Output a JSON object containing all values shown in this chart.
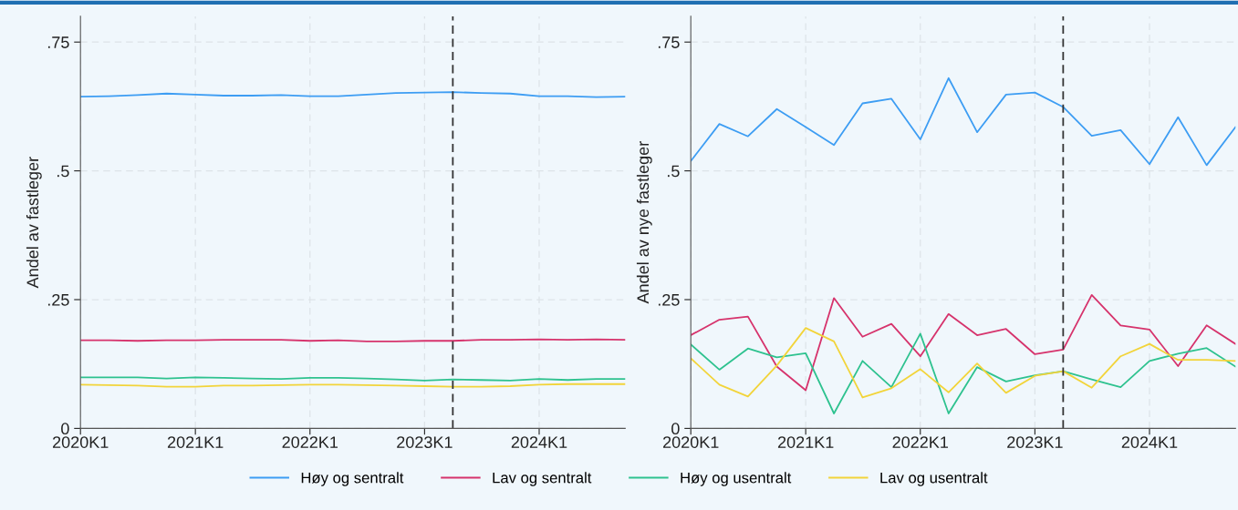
{
  "chart_data": [
    {
      "type": "line",
      "ylabel": "Andel av fastleger",
      "x": [
        "2020-01",
        "2020-04",
        "2020-07",
        "2020-10",
        "2021-01",
        "2021-04",
        "2021-07",
        "2021-10",
        "2022-01",
        "2022-04",
        "2022-07",
        "2022-10",
        "2023-01",
        "2023-04",
        "2023-07",
        "2023-10",
        "2024-01",
        "2024-04",
        "2024-07",
        "2024-10"
      ],
      "xlim": [
        "2020-01",
        "2024-10"
      ],
      "ylim": [
        0,
        0.8
      ],
      "xticks": [
        {
          "value": "2020-01",
          "label": "2020K1"
        },
        {
          "value": "2021-01",
          "label": "2021K1"
        },
        {
          "value": "2022-01",
          "label": "2022K1"
        },
        {
          "value": "2023-01",
          "label": "2023K1"
        },
        {
          "value": "2024-01",
          "label": "2024K1"
        }
      ],
      "yticks": [
        0,
        {
          "value": 0.25,
          "label": ".25"
        },
        {
          "value": 0.5,
          "label": ".5"
        },
        {
          "value": 0.75,
          "label": ".75"
        }
      ],
      "grid": true,
      "legend": "bottom",
      "line_style": "solid",
      "ref_lines": [
        {
          "axis": "x",
          "value": "2023-04",
          "color": "#333333",
          "line_style": "dashed"
        }
      ],
      "series": [
        {
          "name": "Høy og sentralt",
          "color": "#3d9df3",
          "values": [
            0.644,
            0.645,
            0.647,
            0.65,
            0.648,
            0.646,
            0.646,
            0.647,
            0.645,
            0.645,
            0.648,
            0.651,
            0.652,
            0.653,
            0.651,
            0.65,
            0.645,
            0.645,
            0.643,
            0.644
          ]
        },
        {
          "name": "Lav og sentralt",
          "color": "#d6336c",
          "values": [
            0.171,
            0.171,
            0.17,
            0.171,
            0.171,
            0.172,
            0.172,
            0.172,
            0.17,
            0.171,
            0.169,
            0.169,
            0.17,
            0.17,
            0.172,
            0.172,
            0.173,
            0.172,
            0.173,
            0.172
          ]
        },
        {
          "name": "Høy og usentralt",
          "color": "#2ec28f",
          "values": [
            0.099,
            0.099,
            0.099,
            0.097,
            0.099,
            0.098,
            0.097,
            0.096,
            0.098,
            0.098,
            0.097,
            0.095,
            0.093,
            0.095,
            0.094,
            0.093,
            0.096,
            0.094,
            0.096,
            0.096
          ]
        },
        {
          "name": "Lav og usentralt",
          "color": "#f2d43a",
          "values": [
            0.085,
            0.084,
            0.083,
            0.081,
            0.081,
            0.083,
            0.083,
            0.084,
            0.085,
            0.085,
            0.084,
            0.083,
            0.082,
            0.081,
            0.081,
            0.082,
            0.085,
            0.086,
            0.086,
            0.086
          ]
        }
      ]
    },
    {
      "type": "line",
      "ylabel": "Andel av nye fastleger",
      "x": [
        "2020-01",
        "2020-04",
        "2020-07",
        "2020-10",
        "2021-01",
        "2021-04",
        "2021-07",
        "2021-10",
        "2022-01",
        "2022-04",
        "2022-07",
        "2022-10",
        "2023-01",
        "2023-04",
        "2023-07",
        "2023-10",
        "2024-01",
        "2024-04",
        "2024-07",
        "2024-10"
      ],
      "xlim": [
        "2020-01",
        "2024-10"
      ],
      "ylim": [
        0,
        0.8
      ],
      "xticks": [
        {
          "value": "2020-01",
          "label": "2020K1"
        },
        {
          "value": "2021-01",
          "label": "2021K1"
        },
        {
          "value": "2022-01",
          "label": "2022K1"
        },
        {
          "value": "2023-01",
          "label": "2023K1"
        },
        {
          "value": "2024-01",
          "label": "2024K1"
        }
      ],
      "yticks": [
        0,
        {
          "value": 0.25,
          "label": ".25"
        },
        {
          "value": 0.5,
          "label": ".5"
        },
        {
          "value": 0.75,
          "label": ".75"
        }
      ],
      "grid": true,
      "line_style": "solid",
      "ref_lines": [
        {
          "axis": "x",
          "value": "2023-04",
          "color": "#333333",
          "line_style": "dashed"
        }
      ],
      "series": [
        {
          "name": "Høy og sentralt",
          "color": "#3d9df3",
          "values": [
            0.519,
            0.591,
            0.567,
            0.62,
            0.585,
            0.55,
            0.631,
            0.64,
            0.561,
            0.68,
            0.575,
            0.648,
            0.652,
            0.624,
            0.568,
            0.579,
            0.513,
            0.604,
            0.511,
            0.585
          ]
        },
        {
          "name": "Lav og sentralt",
          "color": "#d6336c",
          "values": [
            0.181,
            0.211,
            0.217,
            0.12,
            0.074,
            0.253,
            0.178,
            0.203,
            0.14,
            0.222,
            0.181,
            0.193,
            0.144,
            0.153,
            0.259,
            0.2,
            0.192,
            0.121,
            0.2,
            0.164
          ]
        },
        {
          "name": "Høy og usentralt",
          "color": "#2ec28f",
          "values": [
            0.163,
            0.114,
            0.155,
            0.138,
            0.146,
            0.029,
            0.131,
            0.08,
            0.184,
            0.029,
            0.119,
            0.091,
            0.103,
            0.111,
            0.095,
            0.08,
            0.131,
            0.145,
            0.156,
            0.12
          ]
        },
        {
          "name": "Lav og usentralt",
          "color": "#f2d43a",
          "values": [
            0.136,
            0.085,
            0.062,
            0.122,
            0.195,
            0.169,
            0.06,
            0.078,
            0.115,
            0.07,
            0.126,
            0.069,
            0.102,
            0.111,
            0.079,
            0.14,
            0.164,
            0.133,
            0.133,
            0.131
          ]
        }
      ]
    }
  ]
}
